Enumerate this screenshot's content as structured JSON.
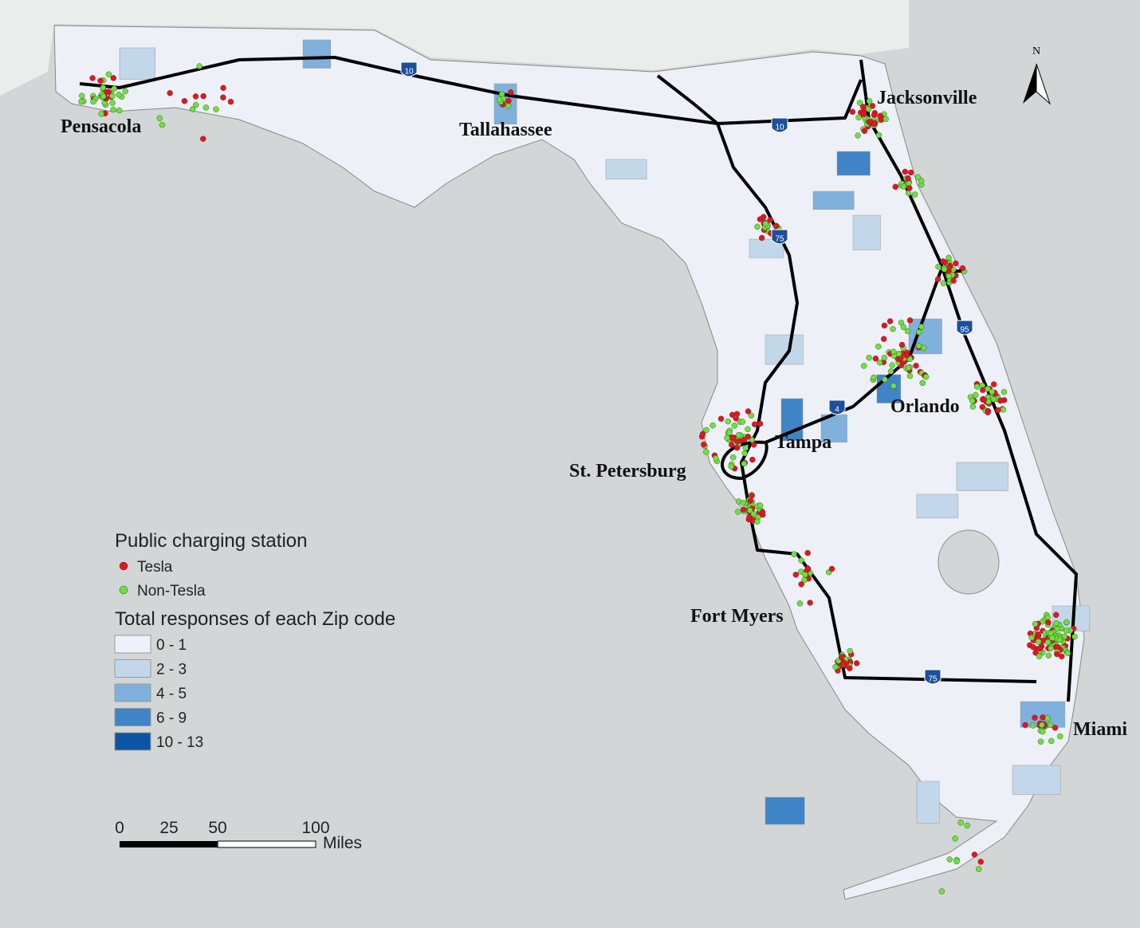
{
  "map": {
    "cities": [
      "Pensacola",
      "Tallahassee",
      "Jacksonville",
      "Orlando",
      "Tampa",
      "St. Petersburg",
      "Fort Myers",
      "Miami"
    ],
    "interstates": [
      "10",
      "10",
      "75",
      "4",
      "95",
      "75"
    ],
    "north": "N"
  },
  "legend": {
    "stations": {
      "title": "Public charging station",
      "items": [
        {
          "label": "Tesla",
          "color": "#e8141c"
        },
        {
          "label": "Non-Tesla",
          "color": "#6be33a"
        }
      ]
    },
    "zip": {
      "title": "Total responses of each Zip code",
      "items": [
        {
          "label": "0 - 1",
          "color": "#eef1fb"
        },
        {
          "label": "2 - 3",
          "color": "#c3d7ea"
        },
        {
          "label": "4 - 5",
          "color": "#7fb1dc"
        },
        {
          "label": "6 - 9",
          "color": "#3f84c6"
        },
        {
          "label": "10 - 13",
          "color": "#0d55a4"
        }
      ]
    }
  },
  "scale_bar": {
    "labels": [
      "0",
      "25",
      "50",
      "100"
    ],
    "unit": "Miles"
  }
}
